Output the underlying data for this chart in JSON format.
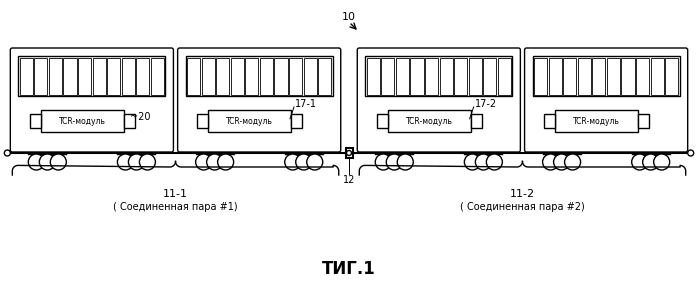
{
  "bg_color": "#ffffff",
  "line_color": "#000000",
  "title": "ΤИГ.1",
  "label_10": "10",
  "label_12": "12",
  "label_20": "~20",
  "label_17_1": "17-1",
  "label_17_2": "17-2",
  "label_11_1": "11-1",
  "label_11_2": "11-2",
  "label_pair1": "( Соединенная пара #1)",
  "label_pair2": "( Соединенная пара #2)",
  "label_tcr": "TCR-модуль",
  "figsize": [
    6.98,
    2.87
  ],
  "dpi": 100
}
